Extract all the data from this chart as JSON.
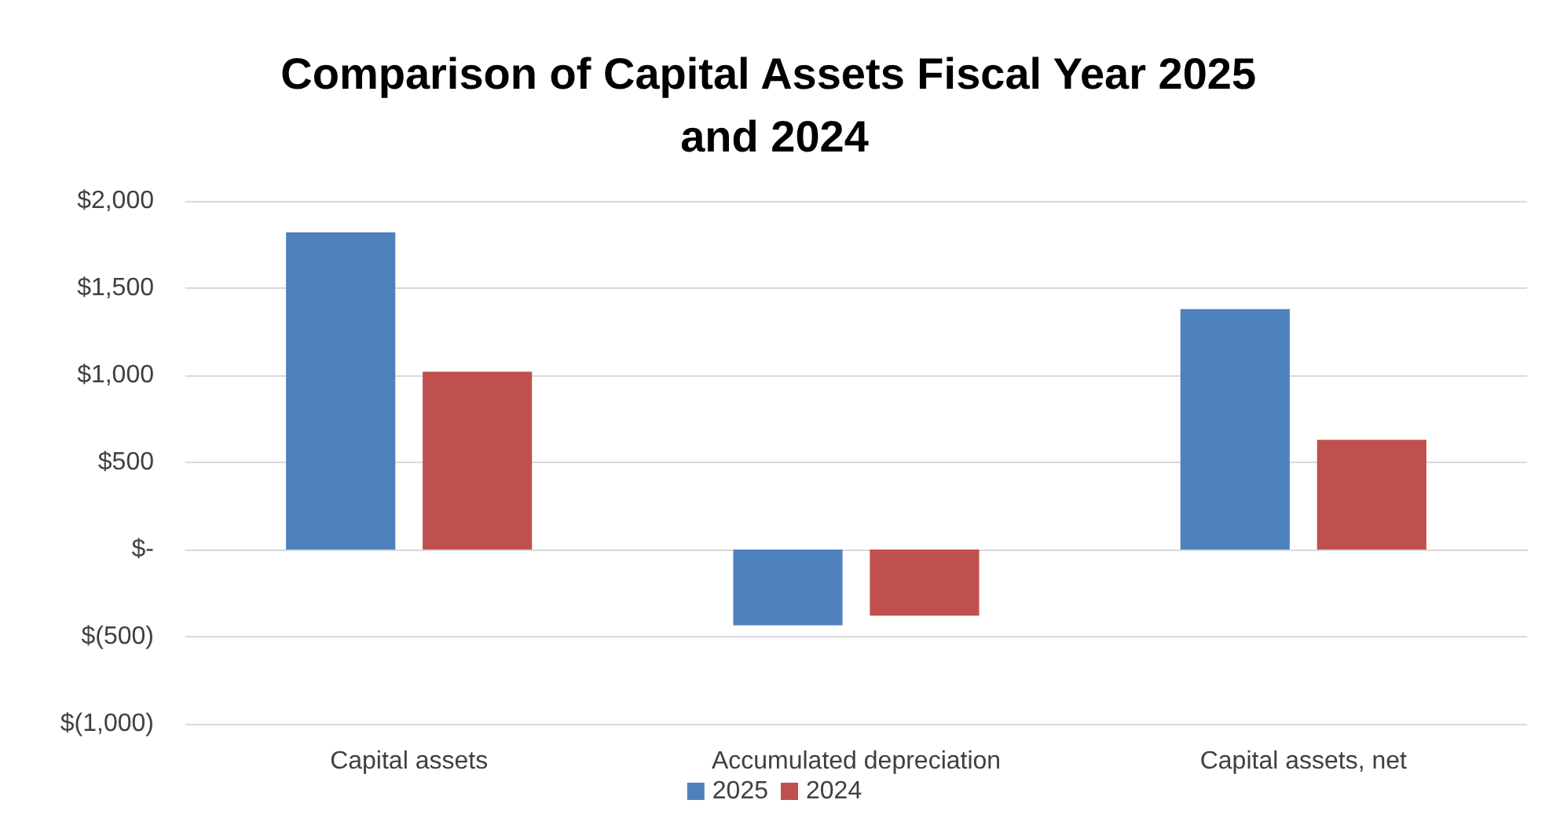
{
  "chart_data": {
    "type": "bar",
    "title": "Comparison of Capital Assets Fiscal Year 2025 and 2024",
    "categories": [
      "Capital assets",
      "Accumulated depreciation",
      "Capital assets, net"
    ],
    "series": [
      {
        "name": "2025",
        "color": "#4f81bd",
        "values": [
          1820,
          -435,
          1380
        ]
      },
      {
        "name": "2024",
        "color": "#c0504d",
        "values": [
          1020,
          -380,
          630
        ]
      }
    ],
    "ylim": [
      -1000,
      2000
    ],
    "yticks": [
      {
        "value": -1000,
        "label": "$(1,000)"
      },
      {
        "value": -500,
        "label": "$(500)"
      },
      {
        "value": 0,
        "label": "$-"
      },
      {
        "value": 500,
        "label": "$500"
      },
      {
        "value": 1000,
        "label": "$1,000"
      },
      {
        "value": 1500,
        "label": "$1,500"
      },
      {
        "value": 2000,
        "label": "$2,000"
      }
    ],
    "grid": "y",
    "legend": "bottom"
  }
}
